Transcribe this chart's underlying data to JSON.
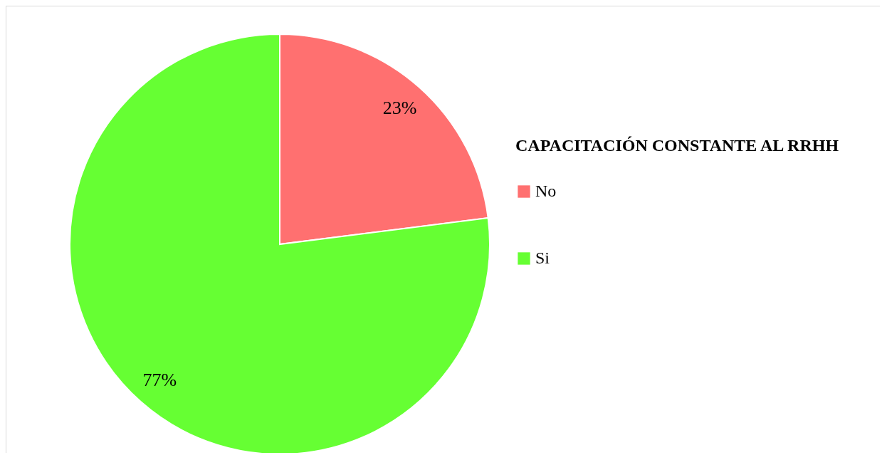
{
  "chart_data": {
    "type": "pie",
    "legend_title": "CAPACITACIÓN CONSTANTE AL RRHH",
    "categories": [
      "No",
      "Si"
    ],
    "values": [
      23,
      77
    ],
    "colors": [
      "#ff7070",
      "#66ff33"
    ],
    "value_labels": [
      "23%",
      "77%"
    ],
    "legend": "right"
  }
}
